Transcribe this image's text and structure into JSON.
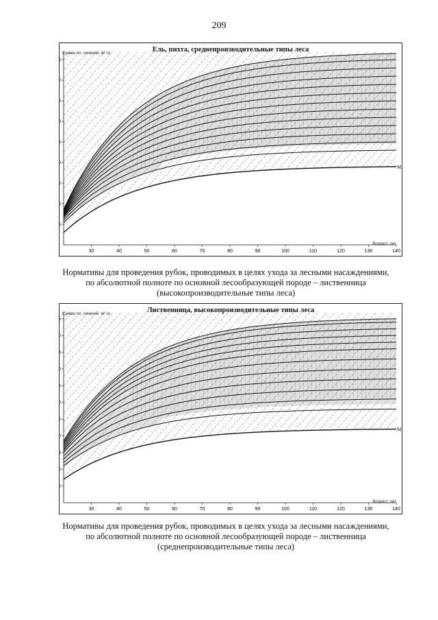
{
  "page": {
    "number": "209"
  },
  "captions": [
    {
      "lines": [
        "Нормативы для проведения рубок, проводимых в целях ухода за лесными насаждениями,",
        "по абсолютной полноте по основной лесообразующей породе – лиственница",
        "(высокопроизводительные типы леса)"
      ]
    },
    {
      "lines": [
        "Нормативы для проведения рубок, проводимых в целях ухода за лесными насаждениями,",
        "по абсолютной полноте по основной лесообразующей породе – лиственница",
        "(среднепроизводительные типы леса)"
      ]
    }
  ],
  "chart_data": [
    {
      "type": "line",
      "title": "Ель, пихта, среднепроизводительные типы леса",
      "ylabel": "Сумма пл. сечений, м² га",
      "xlabel": "Возраст, лет",
      "xlim": [
        20,
        140
      ],
      "ylim": [
        0,
        47
      ],
      "x_ticks": [
        30,
        40,
        50,
        60,
        70,
        80,
        90,
        100,
        110,
        120,
        130,
        140
      ],
      "y_ticks": [
        5,
        10,
        15,
        20,
        25,
        30,
        35,
        40,
        45
      ],
      "grid": false,
      "line_label": "М",
      "curves": [
        {
          "start": 3,
          "end": 19
        },
        {
          "start": 5.4,
          "end": 23
        },
        {
          "start": 6,
          "end": 25
        },
        {
          "start": 6.5,
          "end": 27
        },
        {
          "start": 6.8,
          "end": 29
        },
        {
          "start": 7,
          "end": 31
        },
        {
          "start": 7.2,
          "end": 33
        },
        {
          "start": 7.4,
          "end": 35
        },
        {
          "start": 7.6,
          "end": 37
        },
        {
          "start": 7.8,
          "end": 39
        },
        {
          "start": 8,
          "end": 41
        },
        {
          "start": 8.2,
          "end": 43
        },
        {
          "start": 8.4,
          "end": 45
        },
        {
          "start": 8.6,
          "end": 46.5
        }
      ]
    },
    {
      "type": "line",
      "title": "Лиственница, высокопроизводительные типы леса",
      "ylabel": "Сумма пл. сечений, м² га",
      "xlabel": "Возраст, лет",
      "xlim": [
        20,
        140
      ],
      "ylim": [
        0,
        57
      ],
      "x_ticks": [
        30,
        40,
        50,
        60,
        70,
        80,
        90,
        100,
        110,
        120,
        130,
        140
      ],
      "y_ticks": [
        5,
        10,
        15,
        20,
        25,
        30,
        35,
        40,
        45,
        50,
        55
      ],
      "grid": false,
      "line_label": "М",
      "curves": [
        {
          "start": 7,
          "end": 22
        },
        {
          "start": 11,
          "end": 28
        },
        {
          "start": 12,
          "end": 31
        },
        {
          "start": 13,
          "end": 34
        },
        {
          "start": 14,
          "end": 37
        },
        {
          "start": 15,
          "end": 40
        },
        {
          "start": 15.5,
          "end": 43
        },
        {
          "start": 16,
          "end": 46
        },
        {
          "start": 16.5,
          "end": 48
        },
        {
          "start": 17,
          "end": 50
        },
        {
          "start": 17.5,
          "end": 52
        },
        {
          "start": 18,
          "end": 54
        },
        {
          "start": 18.5,
          "end": 55
        }
      ]
    }
  ]
}
